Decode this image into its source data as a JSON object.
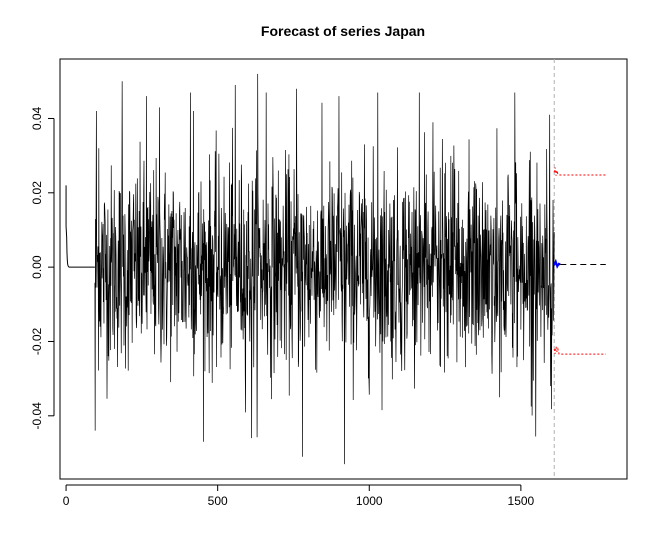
{
  "chart_data": {
    "type": "line",
    "title": "Forecast of series Japan",
    "xlabel": "",
    "ylabel": "",
    "xlim": [
      -20,
      1850
    ],
    "ylim": [
      -0.057,
      0.056
    ],
    "x_ticks": [
      0,
      500,
      1000,
      1500
    ],
    "y_ticks": [
      -0.04,
      -0.02,
      0.0,
      0.02,
      0.04
    ],
    "x_tick_labels": [
      "0",
      "500",
      "1000",
      "1500"
    ],
    "y_tick_labels": [
      "-0.04",
      "-0.02",
      "0.00",
      "0.02",
      "0.04"
    ],
    "grid": false,
    "legend": "none",
    "forecast_origin": 1610,
    "forecast_end": 1780,
    "series": [
      {
        "role": "observed",
        "color": "#000000",
        "style": "solid",
        "segments": [
          {
            "x": [
              0,
              0,
              2,
              3,
              4,
              5,
              6,
              7,
              8,
              9,
              10,
              90,
              92,
              95
            ],
            "y": [
              0.022,
              0.011,
              0.008,
              0.004,
              0.002,
              0.001,
              0.0005,
              0.0003,
              0.0002,
              0.0001,
              0,
              0,
              0,
              0
            ]
          }
        ],
        "noise_range": [
          95,
          1610
        ],
        "envelope_std": 0.0135,
        "envelope_note": "dense daily return series; amplitude roughly within ±0.05",
        "extremes": [
          {
            "x": 96,
            "y": -0.044
          },
          {
            "x": 100,
            "y": 0.042
          },
          {
            "x": 108,
            "y": 0.032
          },
          {
            "x": 185,
            "y": 0.05
          },
          {
            "x": 265,
            "y": 0.046
          },
          {
            "x": 308,
            "y": 0.043
          },
          {
            "x": 410,
            "y": 0.047
          },
          {
            "x": 420,
            "y": 0.042
          },
          {
            "x": 558,
            "y": 0.049
          },
          {
            "x": 612,
            "y": -0.046
          },
          {
            "x": 632,
            "y": 0.052
          },
          {
            "x": 660,
            "y": 0.047
          },
          {
            "x": 760,
            "y": 0.048
          },
          {
            "x": 780,
            "y": -0.051
          },
          {
            "x": 900,
            "y": 0.046
          },
          {
            "x": 918,
            "y": -0.053
          },
          {
            "x": 1028,
            "y": 0.047
          },
          {
            "x": 1165,
            "y": 0.047
          },
          {
            "x": 1210,
            "y": 0.039
          },
          {
            "x": 1430,
            "y": -0.035
          },
          {
            "x": 1480,
            "y": 0.047
          },
          {
            "x": 1595,
            "y": 0.041
          },
          {
            "x": 1598,
            "y": -0.032
          }
        ]
      },
      {
        "role": "forecast-mean",
        "color": "#0000ff",
        "style": "solid",
        "x": [
          1610,
          1615,
          1620,
          1625,
          1630
        ],
        "y": [
          0.0005,
          0.0015,
          0.0002,
          0.0009,
          0.0007
        ]
      },
      {
        "role": "forecast-mean-ext",
        "color": "#000000",
        "style": "dashed",
        "x": [
          1630,
          1780
        ],
        "y": [
          0.0007,
          0.0007
        ]
      },
      {
        "role": "upper-bound",
        "color": "#ff0000",
        "style": "dotted",
        "x": [
          1610,
          1613,
          1616,
          1619,
          1622,
          1626,
          1780
        ],
        "y": [
          0.0255,
          0.0268,
          0.0246,
          0.026,
          0.025,
          0.0248,
          0.0248
        ]
      },
      {
        "role": "lower-bound",
        "color": "#ff0000",
        "style": "dotted",
        "x": [
          1610,
          1613,
          1616,
          1619,
          1622,
          1626,
          1780
        ],
        "y": [
          -0.022,
          -0.0233,
          -0.0214,
          -0.0228,
          -0.022,
          -0.0234,
          -0.0234
        ]
      }
    ],
    "colors": {
      "observed": "#000000",
      "mean": "#0000ff",
      "bounds": "#ff0000",
      "origin_line": "#b0b0b0"
    }
  }
}
